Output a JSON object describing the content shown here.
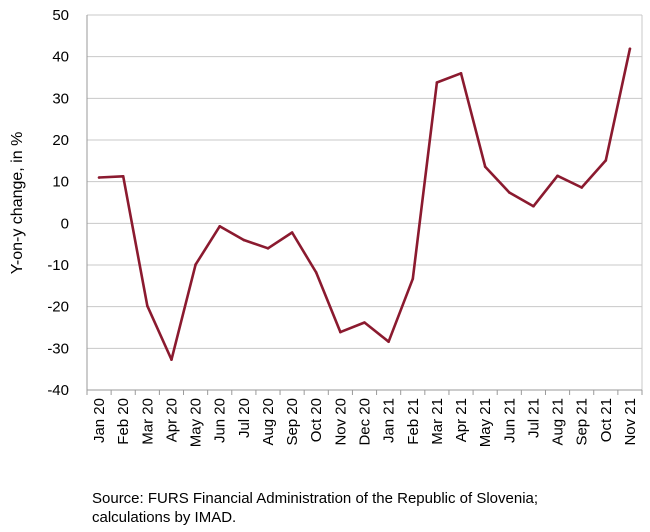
{
  "chart_data": {
    "type": "line",
    "title": "",
    "xlabel": "",
    "ylabel": "Y-on-y change, in %",
    "ylim": [
      -40,
      50
    ],
    "yticks": [
      -40,
      -30,
      -20,
      -10,
      0,
      10,
      20,
      30,
      40,
      50
    ],
    "grid": true,
    "legend": "none",
    "categories": [
      "Jan 20",
      "Feb 20",
      "Mar 20",
      "Apr 20",
      "May 20",
      "Jun 20",
      "Jul 20",
      "Aug 20",
      "Sep 20",
      "Oct 20",
      "Nov 20",
      "Dec 20",
      "Jan 21",
      "Feb 21",
      "Mar 21",
      "Apr 21",
      "May 21",
      "Jun 21",
      "Jul 21",
      "Aug 21",
      "Sep 21",
      "Oct 21",
      "Nov 21"
    ],
    "series": [
      {
        "color": "#8b1a2f",
        "values": [
          11,
          11.3,
          -19.8,
          -32.7,
          -9.9,
          -0.7,
          -4,
          -6,
          -2.2,
          -11.8,
          -26.1,
          -23.8,
          -28.4,
          -13.3,
          33.8,
          36,
          13.6,
          7.4,
          4.1,
          11.4,
          8.6,
          15.1,
          41.9
        ]
      }
    ]
  },
  "source": "Source: FURS Financial Administration of the Republic of Slovenia; calculations by IMAD."
}
